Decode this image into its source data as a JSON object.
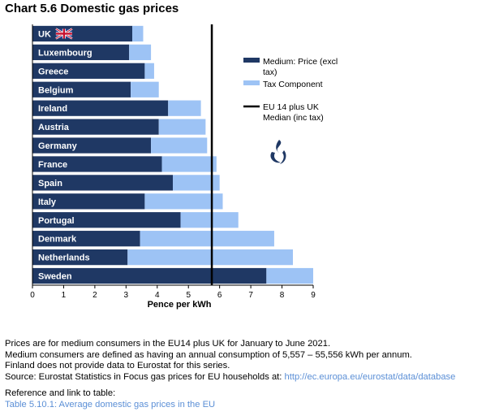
{
  "title": "Chart 5.6 Domestic gas prices",
  "colors": {
    "price": "#1f3864",
    "tax": "#9dc3f5",
    "median": "#000000"
  },
  "legend": {
    "price": [
      "Medium: Price (excl",
      "tax)"
    ],
    "tax": [
      "Tax Component"
    ],
    "median": [
      "EU 14 plus UK",
      "Median (inc tax)"
    ]
  },
  "icon": "flame-logo-icon",
  "chart_data": {
    "type": "bar",
    "orientation": "horizontal",
    "stacked": true,
    "categories": [
      "UK",
      "Luxembourg",
      "Greece",
      "Belgium",
      "Ireland",
      "Austria",
      "Germany",
      "France",
      "Spain",
      "Italy",
      "Portugal",
      "Denmark",
      "Netherlands",
      "Sweden"
    ],
    "series": [
      {
        "name": "Medium: Price (excl tax)",
        "values": [
          3.2,
          3.1,
          3.6,
          3.15,
          4.35,
          4.05,
          3.8,
          4.15,
          4.5,
          3.6,
          4.75,
          3.45,
          3.05,
          7.5
        ]
      },
      {
        "name": "Tax Component",
        "values": [
          0.35,
          0.7,
          0.3,
          0.9,
          1.05,
          1.5,
          1.8,
          1.75,
          1.5,
          2.5,
          1.85,
          4.3,
          5.3,
          1.5
        ]
      }
    ],
    "median": {
      "name": "EU 14 plus UK Median (inc tax)",
      "value": 5.75
    },
    "xlabel": "Pence per kWh",
    "xlim": [
      0,
      9
    ],
    "xticks": [
      0,
      1,
      2,
      3,
      4,
      5,
      6,
      7,
      8,
      9
    ],
    "legend_position": "right",
    "grid": false
  },
  "notes": {
    "line1": "Prices are for medium consumers in the EU14 plus UK for January to June 2021.",
    "line2": "Medium consumers are defined as having an annual consumption of 5,557 – 55,556 kWh per annum.",
    "line3": "Finland does not provide data to Eurostat for this series.",
    "source_prefix": "Source: Eurostat Statistics in Focus gas prices for EU households at: ",
    "source_link": "http://ec.europa.eu/eurostat/data/database",
    "ref_label": "Reference and link to table:",
    "ref_link": "Table 5.10.1: Average domestic gas prices in the EU"
  }
}
